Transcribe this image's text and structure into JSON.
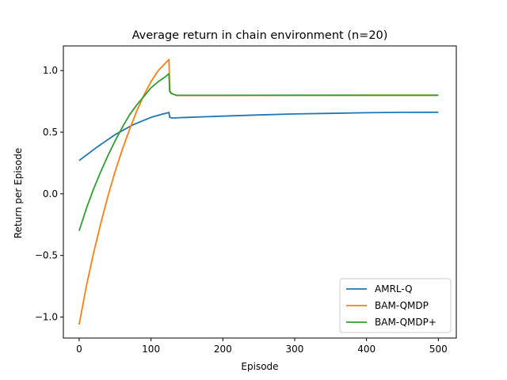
{
  "chart_data": {
    "type": "line",
    "title": "Average return in chain environment (n=20)",
    "xlabel": "Episode",
    "ylabel": "Return per Episode",
    "xlim": [
      -22,
      525
    ],
    "ylim": [
      -1.17,
      1.2
    ],
    "xticks": [
      0,
      100,
      200,
      300,
      400,
      500
    ],
    "yticks": [
      1.0,
      0.5,
      0.0,
      -0.5,
      -1.0
    ],
    "ytick_labels": [
      "1.0",
      "0.5",
      "0.0",
      "−0.5",
      "−1.0"
    ],
    "grid": false,
    "legend_position": "lower-right",
    "series": [
      {
        "name": "AMRL-Q",
        "color": "#1f77b4",
        "x": [
          0,
          25,
          50,
          75,
          100,
          115,
          125,
          126,
          130,
          140,
          150,
          175,
          200,
          250,
          300,
          350,
          400,
          450,
          500
        ],
        "y": [
          0.27,
          0.38,
          0.48,
          0.56,
          0.62,
          0.645,
          0.66,
          0.62,
          0.615,
          0.618,
          0.62,
          0.625,
          0.63,
          0.64,
          0.648,
          0.653,
          0.658,
          0.661,
          0.662
        ]
      },
      {
        "name": "BAM-QMDP",
        "color": "#ff7f0e",
        "x": [
          0,
          10,
          20,
          30,
          40,
          50,
          60,
          70,
          80,
          90,
          100,
          110,
          120,
          125,
          126,
          128,
          130,
          135,
          140,
          150,
          200,
          300,
          400,
          500
        ],
        "y": [
          -1.06,
          -0.75,
          -0.48,
          -0.24,
          -0.02,
          0.18,
          0.36,
          0.52,
          0.67,
          0.8,
          0.91,
          1.0,
          1.06,
          1.09,
          0.84,
          0.82,
          0.81,
          0.8,
          0.798,
          0.798,
          0.798,
          0.799,
          0.8,
          0.8
        ]
      },
      {
        "name": "BAM-QMDP+",
        "color": "#2ca02c",
        "x": [
          0,
          10,
          20,
          30,
          40,
          50,
          60,
          70,
          80,
          90,
          100,
          110,
          120,
          125,
          126,
          128,
          130,
          135,
          140,
          150,
          200,
          300,
          400,
          500
        ],
        "y": [
          -0.3,
          -0.12,
          0.04,
          0.18,
          0.31,
          0.43,
          0.54,
          0.64,
          0.72,
          0.79,
          0.86,
          0.91,
          0.95,
          0.975,
          0.83,
          0.815,
          0.81,
          0.8,
          0.799,
          0.799,
          0.799,
          0.8,
          0.8,
          0.8
        ]
      }
    ]
  }
}
